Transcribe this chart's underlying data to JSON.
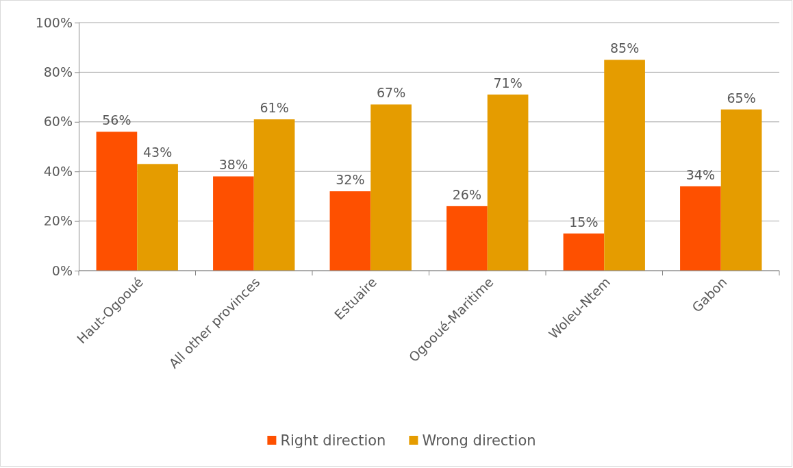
{
  "chart_data": {
    "type": "bar",
    "categories": [
      "Haut-Ogooué",
      "All other provinces",
      "Estuaire",
      "Ogooué-Maritime",
      "Woleu-Ntem",
      "Gabon"
    ],
    "series": [
      {
        "name": "Right direction",
        "color": "#fe5000",
        "values": [
          56,
          38,
          32,
          26,
          15,
          34
        ],
        "value_labels": [
          "56%",
          "38%",
          "32%",
          "26%",
          "15%",
          "34%"
        ]
      },
      {
        "name": "Wrong direction",
        "color": "#e59c00",
        "values": [
          43,
          61,
          67,
          71,
          85,
          65
        ],
        "value_labels": [
          "43%",
          "61%",
          "67%",
          "71%",
          "85%",
          "65%"
        ]
      }
    ],
    "ylim": [
      0,
      100
    ],
    "yticks": [
      {
        "value": 0,
        "label": "0%"
      },
      {
        "value": 20,
        "label": "20%"
      },
      {
        "value": 40,
        "label": "40%"
      },
      {
        "value": 60,
        "label": "60%"
      },
      {
        "value": 80,
        "label": "80%"
      },
      {
        "value": 100,
        "label": "100%"
      }
    ],
    "grid": "y",
    "legend": "bottom"
  }
}
